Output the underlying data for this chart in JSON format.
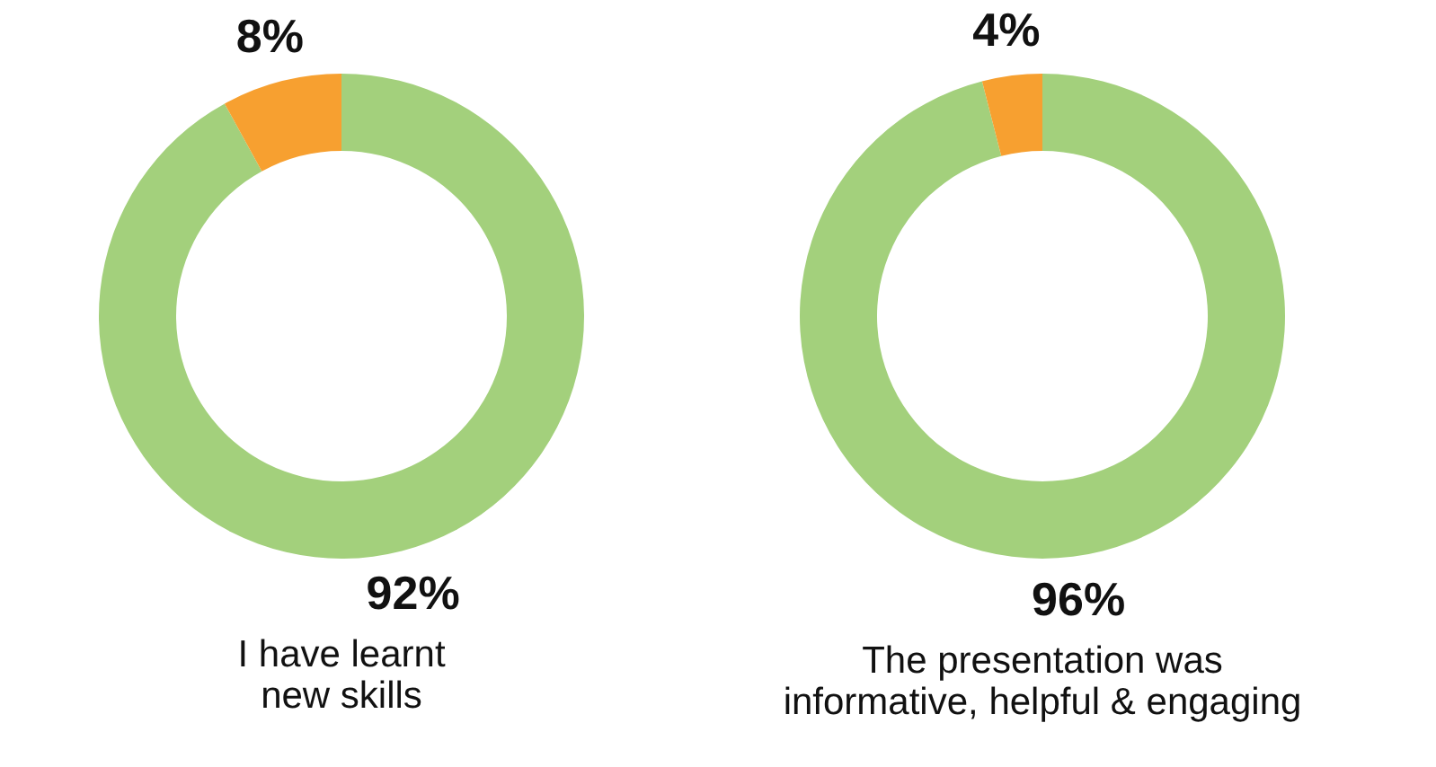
{
  "chart_data": [
    {
      "type": "donut",
      "title": "I have learnt\nnew skills",
      "categories": [
        null,
        null
      ],
      "values": [
        92,
        8
      ],
      "colors": [
        "#a3d07c",
        "#f7a030"
      ],
      "value_labels": [
        "92%",
        "8%"
      ],
      "legend": false
    },
    {
      "type": "donut",
      "title": "The presentation was\ninformative, helpful & engaging",
      "categories": [
        null,
        null
      ],
      "values": [
        96,
        4
      ],
      "colors": [
        "#a3d07c",
        "#f7a030"
      ],
      "value_labels": [
        "96%",
        "4%"
      ],
      "legend": false
    }
  ]
}
